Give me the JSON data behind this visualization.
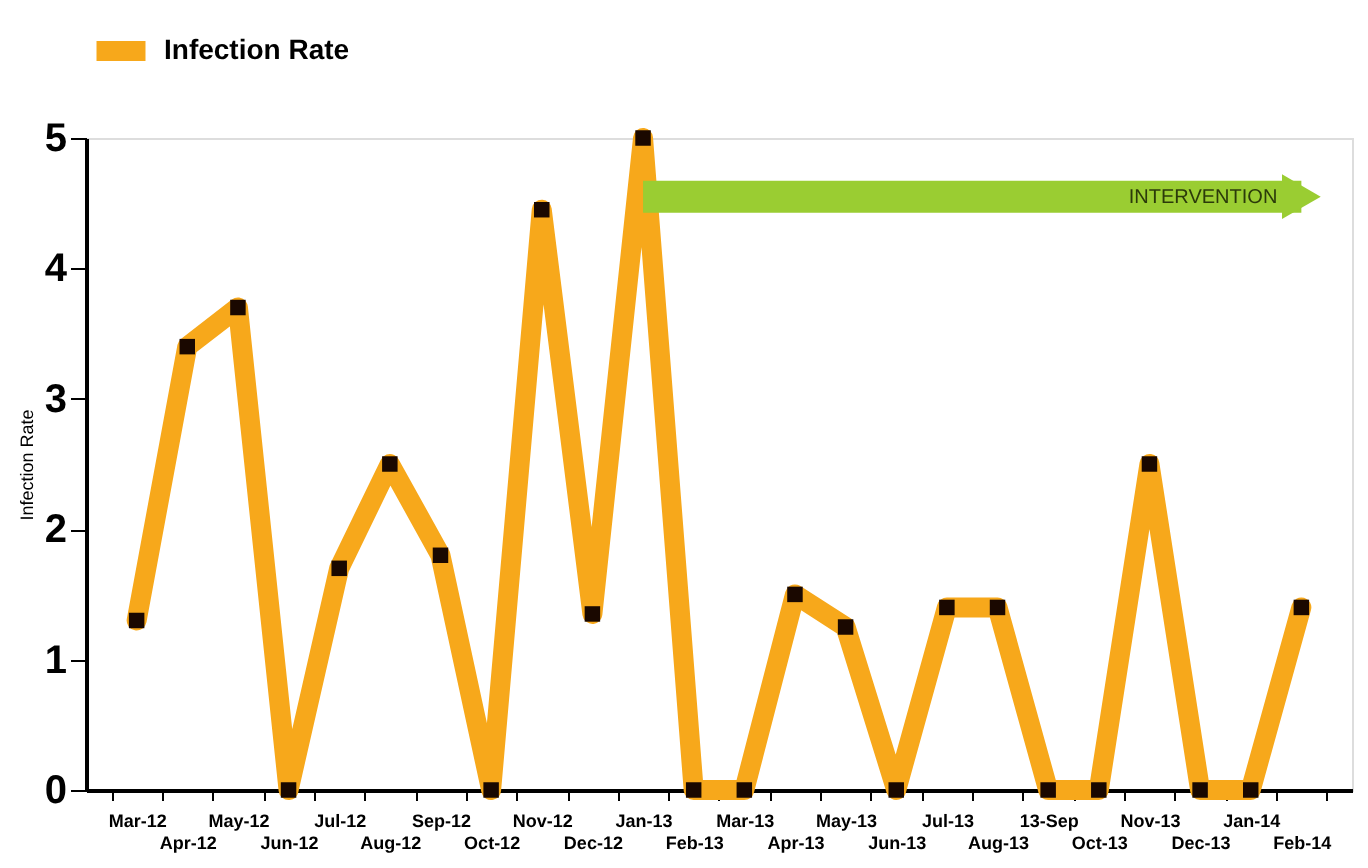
{
  "chart_data": {
    "type": "line",
    "ylabel": "Infection Rate",
    "categories": [
      "Mar-12",
      "Apr-12",
      "May-12",
      "Jun-12",
      "Jul-12",
      "Aug-12",
      "Sep-12",
      "Oct-12",
      "Nov-12",
      "Dec-12",
      "Jan-13",
      "Feb-13",
      "Mar-13",
      "Apr-13",
      "May-13",
      "Jun-13",
      "Jul-13",
      "Aug-13",
      "13-Sep",
      "Oct-13",
      "Nov-13",
      "Dec-13",
      "Jan-14",
      "Feb-14"
    ],
    "series": [
      {
        "name": "Infection Rate",
        "color": "#f7a81b",
        "values": [
          1.3,
          3.4,
          3.7,
          0,
          1.7,
          2.5,
          1.8,
          0,
          4.45,
          1.35,
          5,
          0,
          0,
          1.5,
          1.25,
          0,
          1.4,
          1.4,
          0,
          0,
          2.5,
          0,
          0,
          1.4
        ]
      }
    ],
    "ylim": [
      0,
      5
    ],
    "yticks": [
      0,
      1,
      2,
      3,
      4,
      5
    ],
    "grid": false,
    "legend": "top",
    "marker": "square",
    "line_style": "solid",
    "annotations": [
      {
        "text": "INTERVENTION",
        "x": "Jan-13",
        "y": 4.55
      }
    ]
  }
}
